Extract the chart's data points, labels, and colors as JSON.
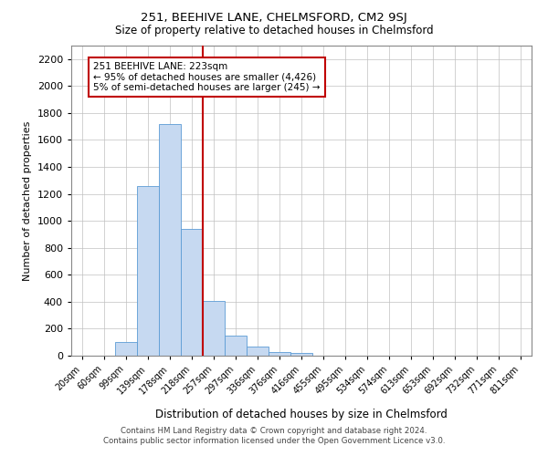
{
  "title1": "251, BEEHIVE LANE, CHELMSFORD, CM2 9SJ",
  "title2": "Size of property relative to detached houses in Chelmsford",
  "xlabel": "Distribution of detached houses by size in Chelmsford",
  "ylabel": "Number of detached properties",
  "footnote1": "Contains HM Land Registry data © Crown copyright and database right 2024.",
  "footnote2": "Contains public sector information licensed under the Open Government Licence v3.0.",
  "categories": [
    "20sqm",
    "60sqm",
    "99sqm",
    "139sqm",
    "178sqm",
    "218sqm",
    "257sqm",
    "297sqm",
    "336sqm",
    "376sqm",
    "416sqm",
    "455sqm",
    "495sqm",
    "534sqm",
    "574sqm",
    "613sqm",
    "653sqm",
    "692sqm",
    "732sqm",
    "771sqm",
    "811sqm"
  ],
  "values": [
    0,
    0,
    100,
    1260,
    1720,
    940,
    405,
    150,
    70,
    30,
    20,
    0,
    0,
    0,
    0,
    0,
    0,
    0,
    0,
    0,
    0
  ],
  "bar_color": "#c6d9f1",
  "bar_edgecolor": "#5b9bd5",
  "vline_index": 5.5,
  "vline_color": "#c00000",
  "annotation_text": "251 BEEHIVE LANE: 223sqm\n← 95% of detached houses are smaller (4,426)\n5% of semi-detached houses are larger (245) →",
  "annotation_box_color": "#c00000",
  "annotation_text_color": "#000000",
  "ylim": [
    0,
    2300
  ],
  "yticks": [
    0,
    200,
    400,
    600,
    800,
    1000,
    1200,
    1400,
    1600,
    1800,
    2000,
    2200
  ],
  "grid_color": "#c0c0c0",
  "background_color": "#ffffff",
  "figsize": [
    6.0,
    5.0
  ],
  "dpi": 100
}
